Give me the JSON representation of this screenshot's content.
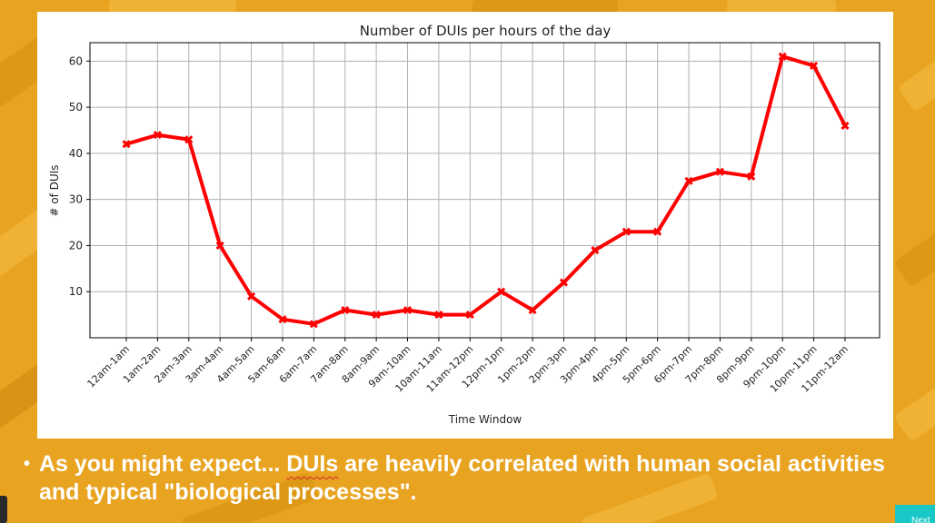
{
  "slide": {
    "bullet": "•",
    "caption_pre": "As you might expect... ",
    "caption_em": "DUIs",
    "caption_post": " are heavily correlated with human social activities and typical \"biological processes\".",
    "next_label": "Next"
  },
  "colors": {
    "background": "#e8a421",
    "line": "#ff0000",
    "next_button": "#19c7c7"
  },
  "chart_data": {
    "type": "line",
    "title": "Number of DUIs per hours of the day",
    "xlabel": "Time Window",
    "ylabel": "# of DUIs",
    "categories": [
      "12am-1am",
      "1am-2am",
      "2am-3am",
      "3am-4am",
      "4am-5am",
      "5am-6am",
      "6am-7am",
      "7am-8am",
      "8am-9am",
      "9am-10am",
      "10am-11am",
      "11am-12pm",
      "12pm-1pm",
      "1pm-2pm",
      "2pm-3pm",
      "3pm-4pm",
      "4pm-5pm",
      "5pm-6pm",
      "6pm-7pm",
      "7pm-8pm",
      "8pm-9pm",
      "9pm-10pm",
      "10pm-11pm",
      "11pm-12am"
    ],
    "values": [
      42,
      44,
      43,
      20,
      9,
      4,
      3,
      6,
      5,
      6,
      5,
      5,
      10,
      6,
      12,
      19,
      23,
      23,
      34,
      36,
      35,
      61,
      59,
      46
    ],
    "yticks": [
      10,
      20,
      30,
      40,
      50,
      60
    ],
    "ylim": [
      0,
      64
    ],
    "grid": true,
    "marker": "x"
  }
}
